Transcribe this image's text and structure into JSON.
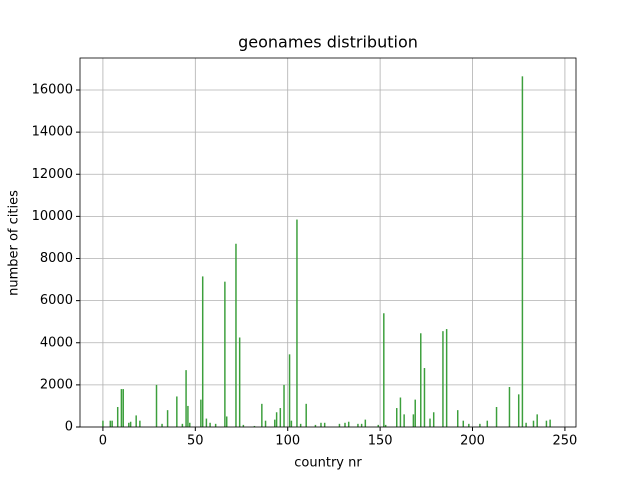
{
  "chart_data": {
    "type": "bar",
    "title": "geonames distribution",
    "xlabel": "country nr",
    "ylabel": "number of cities",
    "x": [
      0,
      4,
      5,
      8,
      10,
      11,
      14,
      15,
      18,
      20,
      29,
      32,
      35,
      40,
      43,
      45,
      46,
      47,
      53,
      54,
      56,
      58,
      61,
      66,
      67,
      72,
      74,
      76,
      82,
      86,
      88,
      93,
      94,
      96,
      98,
      101,
      102,
      105,
      107,
      110,
      115,
      118,
      120,
      128,
      131,
      133,
      138,
      140,
      142,
      149,
      152,
      153,
      159,
      161,
      163,
      168,
      169,
      172,
      174,
      177,
      179,
      184,
      186,
      192,
      195,
      198,
      204,
      208,
      213,
      220,
      225,
      227,
      229,
      233,
      235,
      240,
      242
    ],
    "values": [
      300,
      300,
      300,
      950,
      1800,
      1800,
      200,
      250,
      550,
      300,
      2000,
      150,
      800,
      1450,
      150,
      2700,
      1000,
      200,
      1300,
      7150,
      400,
      200,
      150,
      6900,
      500,
      8700,
      4250,
      100,
      50,
      1100,
      300,
      350,
      700,
      900,
      2000,
      3450,
      300,
      9850,
      150,
      1100,
      100,
      200,
      200,
      150,
      200,
      250,
      150,
      150,
      350,
      100,
      5400,
      100,
      900,
      1400,
      600,
      600,
      1300,
      4450,
      2800,
      400,
      700,
      4550,
      4650,
      800,
      300,
      150,
      150,
      300,
      950,
      1900,
      1550,
      16650,
      200,
      300,
      600,
      300,
      350
    ],
    "color": "#3c9f3c",
    "xlim": [
      -12.4,
      256
    ],
    "ylim": [
      0,
      17520
    ],
    "xticks": [
      0,
      50,
      100,
      150,
      200,
      250
    ],
    "yticks": [
      0,
      2000,
      4000,
      6000,
      8000,
      10000,
      12000,
      14000,
      16000
    ],
    "grid": true
  }
}
